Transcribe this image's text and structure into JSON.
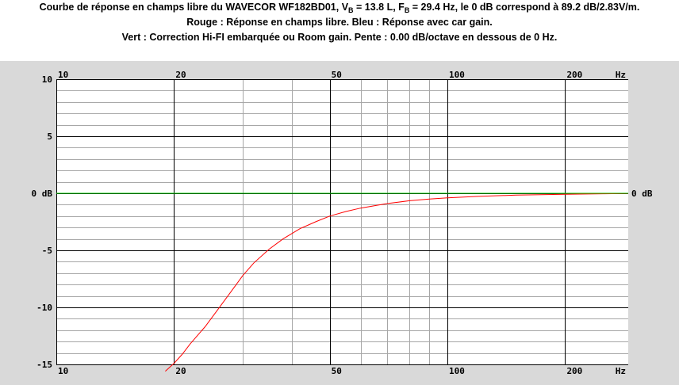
{
  "title": {
    "part1": "Courbe de réponse en champs libre du WAVECOR WF182BD01, V",
    "sub1": "B",
    "part2": " = 13.8 L, F",
    "sub2": "B",
    "part3": " = 29.4 Hz, le 0 dB correspond à 89.2 dB/2.83V/m.",
    "line2": "Rouge : Réponse en champs libre. Bleu : Réponse avec car gain.",
    "line3": "Vert : Correction Hi-FI embarquée ou Room gain. Pente : 0.00 dB/octave en dessous de 0 Hz."
  },
  "chart_data": {
    "type": "line",
    "x_scale": "log",
    "xlim": [
      10,
      290
    ],
    "ylim": [
      -15,
      10
    ],
    "x_ticks": [
      {
        "value": 10,
        "label": "10"
      },
      {
        "value": 20,
        "label": "20"
      },
      {
        "value": 50,
        "label": "50"
      },
      {
        "value": 100,
        "label": "100"
      },
      {
        "value": 200,
        "label": "200"
      }
    ],
    "x_unit": "Hz",
    "y_ticks_left": [
      {
        "value": 10,
        "label": "10"
      },
      {
        "value": 5,
        "label": "5"
      },
      {
        "value": 0,
        "label": "0 dB"
      },
      {
        "value": -5,
        "label": "-5"
      },
      {
        "value": -10,
        "label": "-10"
      },
      {
        "value": -15,
        "label": "-15"
      }
    ],
    "y_ticks_right": [
      {
        "value": 0,
        "label": "0 dB"
      }
    ],
    "grid": true,
    "series": [
      {
        "color": "#ff0000",
        "x": [
          19,
          20,
          21,
          22,
          24,
          26,
          28,
          30,
          32,
          35,
          38,
          42,
          46,
          50,
          55,
          60,
          70,
          80,
          90,
          100,
          120,
          150,
          200,
          250,
          290
        ],
        "y": [
          -15.6,
          -14.9,
          -14.1,
          -13.2,
          -11.7,
          -10.1,
          -8.6,
          -7.2,
          -6.1,
          -4.9,
          -4.0,
          -3.1,
          -2.5,
          -2.0,
          -1.6,
          -1.3,
          -0.9,
          -0.65,
          -0.5,
          -0.4,
          -0.27,
          -0.16,
          -0.08,
          -0.04,
          -0.02
        ]
      },
      {
        "color": "#00cc00",
        "x": [
          10,
          290
        ],
        "y": [
          0,
          0
        ]
      }
    ]
  }
}
